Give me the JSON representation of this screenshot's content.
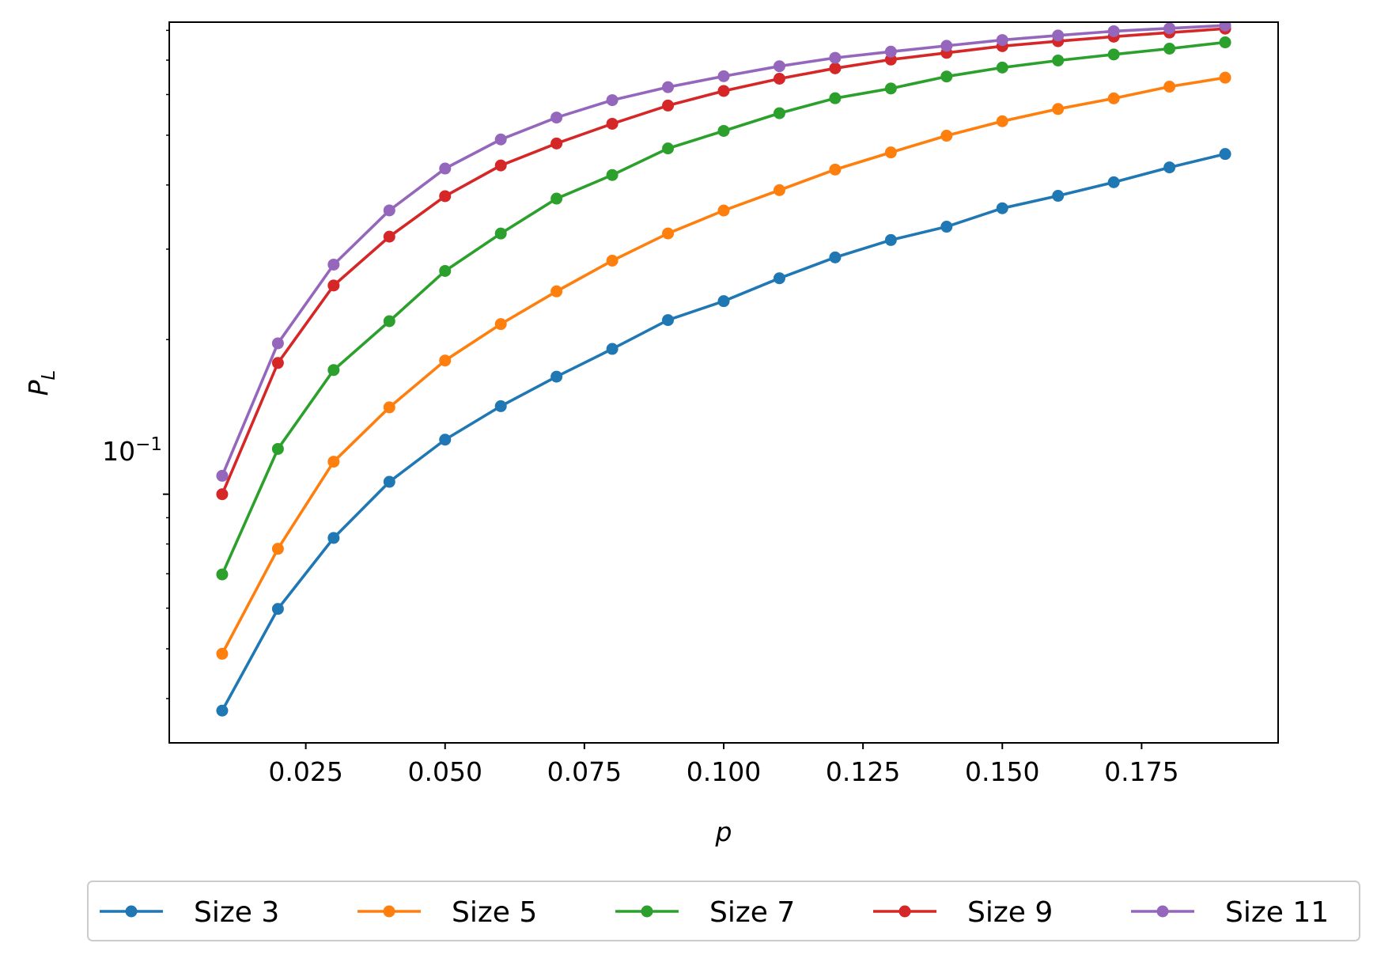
{
  "chart_data": {
    "type": "line",
    "title": "",
    "xlabel": "p",
    "ylabel_main": "P",
    "ylabel_sub": "L",
    "xscale": "linear",
    "yscale": "log",
    "xlim": [
      0.0005,
      0.1995
    ],
    "ylim": [
      0.0328,
      0.83
    ],
    "x_ticks": [
      0.025,
      0.05,
      0.075,
      0.1,
      0.125,
      0.15,
      0.175
    ],
    "x_tick_labels": [
      "0.025",
      "0.050",
      "0.075",
      "0.100",
      "0.125",
      "0.150",
      "0.175"
    ],
    "y_major_ticks": [
      0.1
    ],
    "y_tick_label_base": "10",
    "y_tick_label_exp": "−1",
    "grid": false,
    "legend_position": "below",
    "x": [
      0.01,
      0.02,
      0.03,
      0.04,
      0.05,
      0.06,
      0.07,
      0.08,
      0.09,
      0.1,
      0.11,
      0.12,
      0.13,
      0.14,
      0.15,
      0.16,
      0.17,
      0.18,
      0.19
    ],
    "series": [
      {
        "name": "Size 3",
        "color": "#1f77b4",
        "values": [
          0.0379,
          0.0598,
          0.0822,
          0.1057,
          0.1277,
          0.1484,
          0.1694,
          0.1918,
          0.2183,
          0.2376,
          0.2633,
          0.2891,
          0.3125,
          0.3318,
          0.3604,
          0.381,
          0.4049,
          0.4328,
          0.4596
        ]
      },
      {
        "name": "Size 5",
        "color": "#ff7f0e",
        "values": [
          0.0489,
          0.0783,
          0.1157,
          0.1476,
          0.1821,
          0.2144,
          0.2483,
          0.2849,
          0.3219,
          0.3567,
          0.3908,
          0.4286,
          0.4629,
          0.4989,
          0.5323,
          0.5623,
          0.5897,
          0.6216,
          0.6472
        ]
      },
      {
        "name": "Size 7",
        "color": "#2ca02c",
        "values": [
          0.0698,
          0.1225,
          0.1745,
          0.2172,
          0.2721,
          0.3218,
          0.3763,
          0.4183,
          0.4712,
          0.5097,
          0.5518,
          0.5901,
          0.6165,
          0.6505,
          0.6772,
          0.6989,
          0.7181,
          0.737,
          0.7582
        ]
      },
      {
        "name": "Size 9",
        "color": "#d62728",
        "values": [
          0.1,
          0.1801,
          0.2549,
          0.3173,
          0.3804,
          0.4366,
          0.4818,
          0.5263,
          0.5711,
          0.6097,
          0.6441,
          0.6749,
          0.7019,
          0.7233,
          0.7453,
          0.762,
          0.7778,
          0.7922,
          0.8061
        ]
      },
      {
        "name": "Size 11",
        "color": "#9467bd",
        "values": [
          0.1086,
          0.1967,
          0.2799,
          0.3569,
          0.4306,
          0.4906,
          0.5412,
          0.5851,
          0.6202,
          0.6513,
          0.6812,
          0.7073,
          0.7272,
          0.7465,
          0.7661,
          0.7819,
          0.7969,
          0.8073,
          0.8179
        ]
      }
    ]
  }
}
